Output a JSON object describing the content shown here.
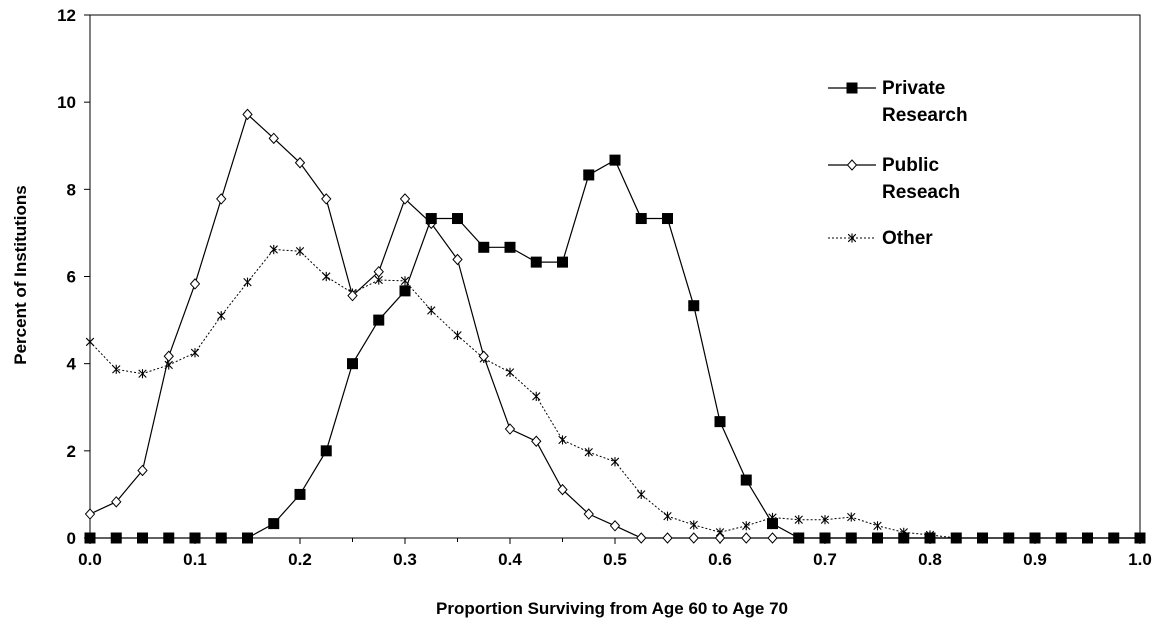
{
  "chart_data": {
    "type": "line",
    "title": "",
    "xlabel": "Proportion Surviving from Age 60 to Age 70",
    "ylabel": "Percent of Institutions",
    "xlim": [
      0,
      1.0
    ],
    "ylim": [
      0,
      12
    ],
    "x_ticks": [
      "0.0",
      "0.1",
      "0.2",
      "0.3",
      "0.4",
      "0.5",
      "0.6",
      "0.7",
      "0.8",
      "0.9",
      "1.0"
    ],
    "y_ticks": [
      "0",
      "2",
      "4",
      "6",
      "8",
      "10",
      "12"
    ],
    "grid": false,
    "legend_position": "top-right",
    "x": [
      0,
      0.025,
      0.05,
      0.075,
      0.1,
      0.125,
      0.15,
      0.175,
      0.2,
      0.225,
      0.25,
      0.275,
      0.3,
      0.325,
      0.35,
      0.375,
      0.4,
      0.425,
      0.45,
      0.475,
      0.5,
      0.525,
      0.55,
      0.575,
      0.6,
      0.625,
      0.65,
      0.675,
      0.7,
      0.725,
      0.75,
      0.775,
      0.8,
      0.825,
      0.85,
      0.875,
      0.9,
      0.925,
      0.95,
      0.975,
      1.0
    ],
    "series": [
      {
        "name": "Private Research",
        "legend_lines": [
          "Private",
          "Research"
        ],
        "marker": "filled-square",
        "line": "solid",
        "values": [
          0,
          0,
          0,
          0,
          0,
          0,
          0,
          0.33,
          1.0,
          2.0,
          4.0,
          5.0,
          5.67,
          7.33,
          7.33,
          6.67,
          6.67,
          6.33,
          6.33,
          8.33,
          8.67,
          7.33,
          7.33,
          5.33,
          2.67,
          1.33,
          0.33,
          0,
          0,
          0,
          0,
          0,
          0,
          0,
          0,
          0,
          0,
          0,
          0,
          0,
          0
        ]
      },
      {
        "name": "Public Reseach",
        "legend_lines": [
          "Public",
          "Reseach"
        ],
        "marker": "open-diamond",
        "line": "solid",
        "values": [
          0.55,
          0.83,
          1.55,
          4.17,
          5.83,
          7.78,
          9.72,
          9.17,
          8.61,
          7.78,
          5.56,
          6.11,
          7.78,
          7.22,
          6.39,
          4.17,
          2.5,
          2.22,
          1.11,
          0.55,
          0.28,
          0,
          0,
          0,
          0,
          0,
          0,
          0,
          0,
          0,
          0,
          0,
          0,
          0,
          0,
          0,
          0,
          0,
          0,
          0,
          0
        ]
      },
      {
        "name": "Other",
        "legend_lines": [
          "Other"
        ],
        "marker": "asterisk",
        "line": "dotted",
        "values": [
          4.5,
          3.87,
          3.77,
          3.97,
          4.25,
          5.1,
          5.87,
          6.62,
          6.58,
          6.0,
          5.62,
          5.92,
          5.9,
          5.22,
          4.65,
          4.12,
          3.8,
          3.25,
          2.25,
          1.97,
          1.75,
          1.0,
          0.5,
          0.3,
          0.13,
          0.28,
          0.47,
          0.42,
          0.42,
          0.48,
          0.28,
          0.13,
          0.07,
          0,
          0,
          0,
          0,
          0,
          0,
          0,
          0
        ]
      }
    ]
  }
}
